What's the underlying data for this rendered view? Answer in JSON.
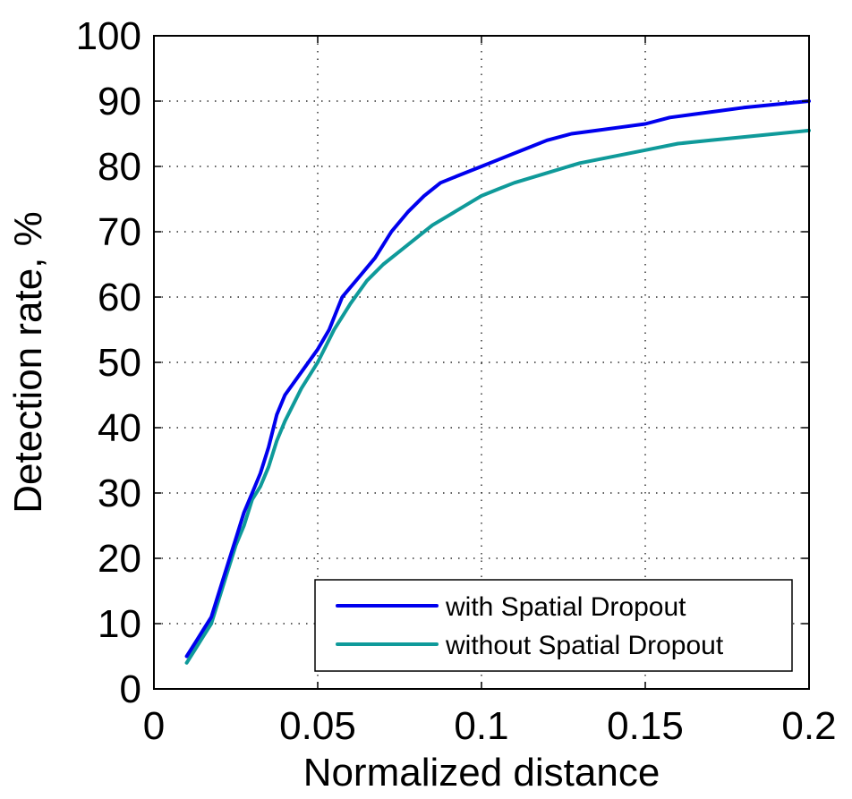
{
  "chart_data": {
    "type": "line",
    "title": "",
    "xlabel": "Normalized distance",
    "ylabel": "Detection rate, %",
    "xlim": [
      0,
      0.2
    ],
    "ylim": [
      0,
      100
    ],
    "grid": true,
    "legend_position": "bottom-right",
    "x_ticks": [
      {
        "value": 0,
        "label": "0"
      },
      {
        "value": 0.05,
        "label": "0.05"
      },
      {
        "value": 0.1,
        "label": "0.1"
      },
      {
        "value": 0.15,
        "label": "0.15"
      },
      {
        "value": 0.2,
        "label": "0.2"
      }
    ],
    "y_ticks": [
      {
        "value": 0,
        "label": "0"
      },
      {
        "value": 10,
        "label": "10"
      },
      {
        "value": 20,
        "label": "20"
      },
      {
        "value": 30,
        "label": "30"
      },
      {
        "value": 40,
        "label": "40"
      },
      {
        "value": 50,
        "label": "50"
      },
      {
        "value": 60,
        "label": "60"
      },
      {
        "value": 70,
        "label": "70"
      },
      {
        "value": 80,
        "label": "80"
      },
      {
        "value": 90,
        "label": "90"
      },
      {
        "value": 100,
        "label": "100"
      }
    ],
    "series": [
      {
        "name": "with Spatial Dropout",
        "color": "#0000ee",
        "x": [
          0.01,
          0.0125,
          0.015,
          0.0175,
          0.02,
          0.0225,
          0.025,
          0.0275,
          0.03,
          0.0325,
          0.035,
          0.0375,
          0.04,
          0.045,
          0.05,
          0.0535,
          0.0575,
          0.0625,
          0.0675,
          0.0725,
          0.0775,
          0.0825,
          0.0875,
          0.0925,
          0.1,
          0.105,
          0.11,
          0.115,
          0.12,
          0.1275,
          0.135,
          0.1425,
          0.15,
          0.1575,
          0.165,
          0.1725,
          0.18,
          0.19,
          0.2
        ],
        "y": [
          5,
          7,
          9,
          11,
          15,
          19,
          23,
          27,
          30,
          33,
          37,
          42,
          45,
          48.5,
          52,
          55,
          60,
          63,
          66,
          70,
          73,
          75.5,
          77.5,
          78.5,
          80,
          81,
          82,
          83,
          84,
          85,
          85.5,
          86,
          86.5,
          87.5,
          88,
          88.5,
          89,
          89.5,
          90
        ]
      },
      {
        "name": "without Spatial Dropout",
        "color": "#0f9a9a",
        "x": [
          0.01,
          0.0125,
          0.015,
          0.0175,
          0.02,
          0.0225,
          0.025,
          0.0275,
          0.03,
          0.0325,
          0.035,
          0.0375,
          0.04,
          0.045,
          0.05,
          0.055,
          0.06,
          0.065,
          0.07,
          0.075,
          0.08,
          0.085,
          0.09,
          0.095,
          0.1,
          0.105,
          0.11,
          0.12,
          0.13,
          0.14,
          0.15,
          0.16,
          0.17,
          0.18,
          0.19,
          0.2
        ],
        "y": [
          4,
          6,
          8,
          10,
          14,
          18,
          22,
          25,
          29,
          31,
          34,
          38,
          41,
          46,
          50,
          55,
          59,
          62.5,
          65,
          67,
          69,
          71,
          72.5,
          74,
          75.5,
          76.5,
          77.5,
          79,
          80.5,
          81.5,
          82.5,
          83.5,
          84,
          84.5,
          85,
          85.5
        ]
      }
    ]
  }
}
